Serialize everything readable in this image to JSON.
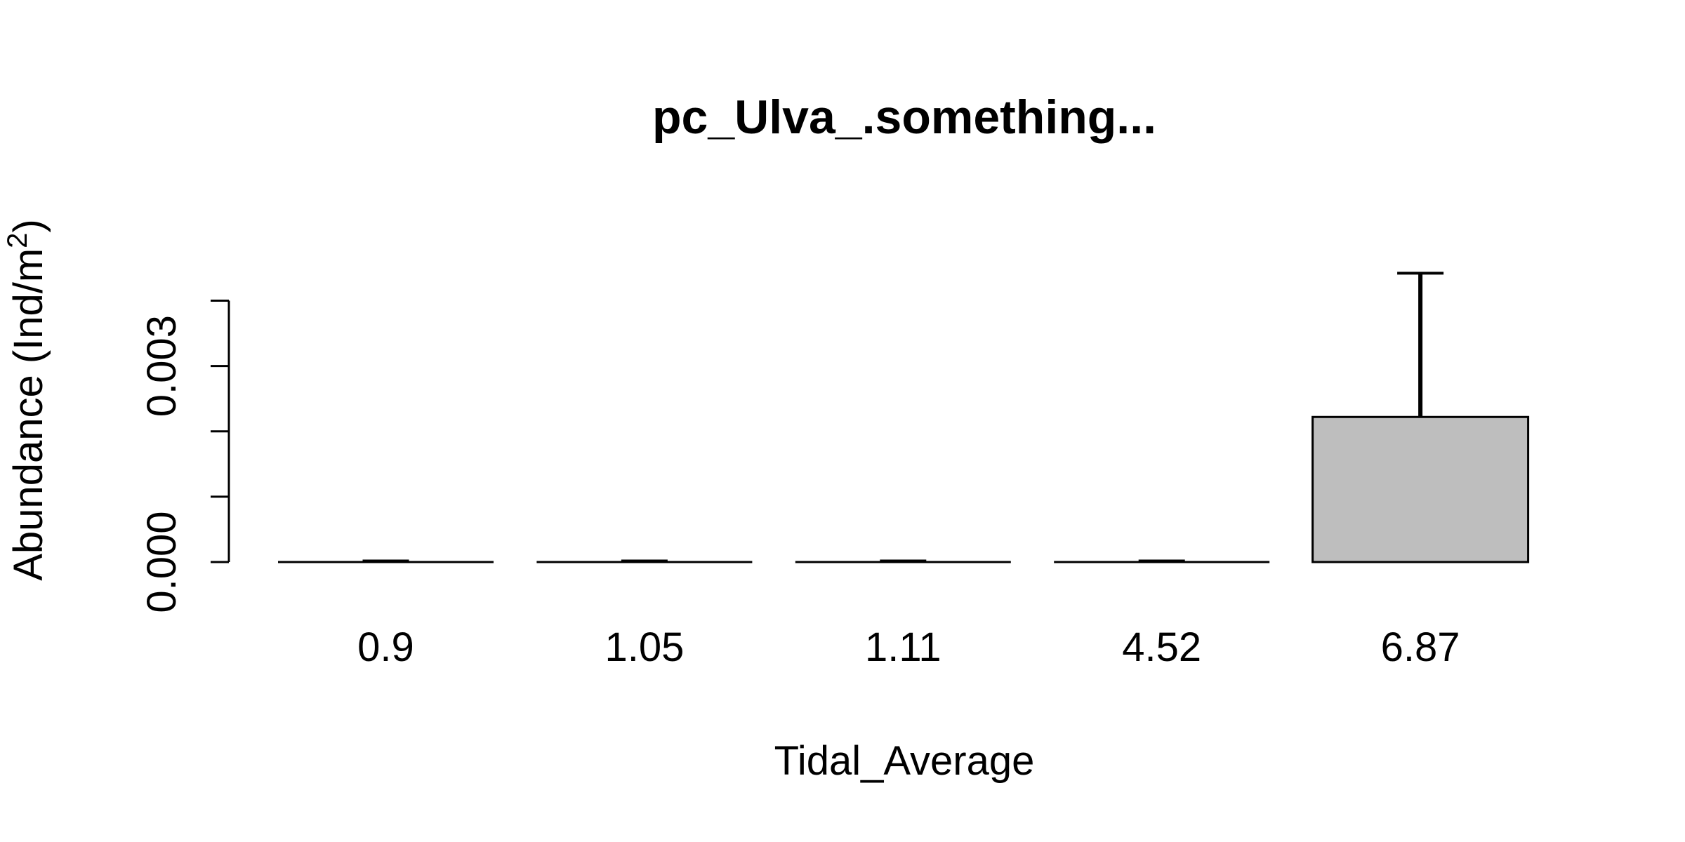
{
  "chart_data": {
    "type": "bar",
    "title": "pc_Ulva_.something...",
    "xlabel": "Tidal_Average",
    "ylabel": {
      "prefix": "Abundance (Ind/m",
      "superscript": "2",
      "suffix": ")"
    },
    "categories": [
      "0.9",
      "1.05",
      "1.11",
      "4.52",
      "6.87"
    ],
    "values": [
      0,
      0,
      0,
      0,
      0.00222
    ],
    "error_upper": [
      0,
      0,
      0,
      0,
      0.00442
    ],
    "ylim": [
      0,
      0.0048
    ],
    "yticks": [
      0,
      0.001,
      0.002,
      0.003,
      0.004
    ],
    "ytick_labels": [
      "0.000",
      "",
      "",
      "0.003",
      ""
    ],
    "grid": false,
    "bar_color": "#bebebe",
    "edge_color": "#000000"
  }
}
